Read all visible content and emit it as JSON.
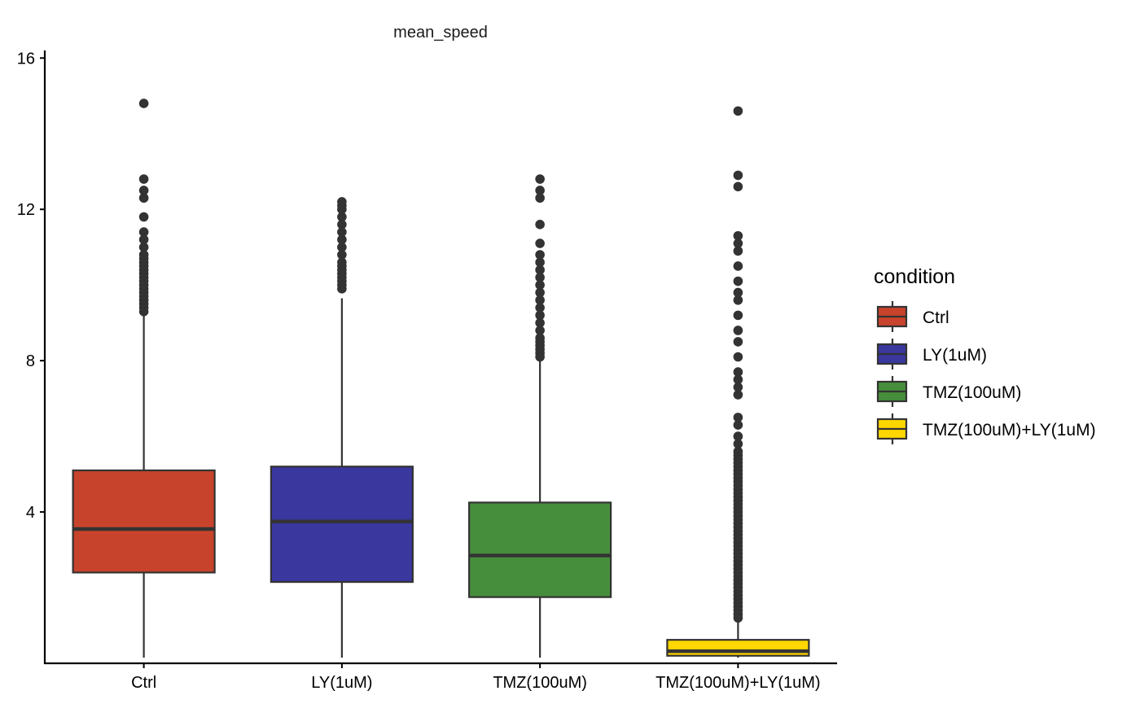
{
  "chart_data": {
    "type": "boxplot",
    "title": "mean_speed",
    "xlabel": "",
    "ylabel": "",
    "ylim": [
      0,
      16.2
    ],
    "yticks": [
      4,
      8,
      12,
      16
    ],
    "grid": false,
    "legend": {
      "title": "condition",
      "position": "right"
    },
    "categories": [
      "Ctrl",
      "LY(1uM)",
      "TMZ(100uM)",
      "TMZ(100uM)+LY(1uM)"
    ],
    "series": [
      {
        "name": "Ctrl",
        "color": "#C8432B",
        "whisker_low": 0.15,
        "q1": 2.4,
        "median": 3.55,
        "q3": 5.1,
        "whisker_high": 9.2,
        "outliers": [
          9.3,
          9.4,
          9.5,
          9.6,
          9.7,
          9.8,
          9.9,
          10.0,
          10.1,
          10.2,
          10.3,
          10.4,
          10.5,
          10.6,
          10.7,
          10.8,
          11.0,
          11.2,
          11.4,
          11.8,
          12.3,
          12.5,
          12.8,
          14.8
        ]
      },
      {
        "name": "LY(1uM)",
        "color": "#3A379E",
        "whisker_low": 0.15,
        "q1": 2.15,
        "median": 3.75,
        "q3": 5.2,
        "whisker_high": 9.65,
        "outliers": [
          9.9,
          10.0,
          10.1,
          10.2,
          10.3,
          10.4,
          10.5,
          10.6,
          10.8,
          11.0,
          11.2,
          11.4,
          11.6,
          11.8,
          12.0,
          12.1,
          12.2
        ]
      },
      {
        "name": "TMZ(100uM)",
        "color": "#468E3C",
        "whisker_low": 0.15,
        "q1": 1.75,
        "median": 2.85,
        "q3": 4.25,
        "whisker_high": 8.05,
        "outliers": [
          8.1,
          8.2,
          8.3,
          8.4,
          8.5,
          8.6,
          8.8,
          9.0,
          9.2,
          9.4,
          9.6,
          9.8,
          10.0,
          10.2,
          10.4,
          10.6,
          10.8,
          11.1,
          11.6,
          12.3,
          12.5,
          12.8
        ]
      },
      {
        "name": "TMZ(100uM)+LY(1uM)",
        "color": "#FFD700",
        "whisker_low": 0.15,
        "q1": 0.2,
        "median": 0.32,
        "q3": 0.62,
        "whisker_high": 1.15,
        "outliers": [
          1.2,
          1.3,
          1.4,
          1.5,
          1.6,
          1.7,
          1.8,
          1.9,
          2.0,
          2.1,
          2.2,
          2.3,
          2.4,
          2.5,
          2.6,
          2.7,
          2.8,
          2.9,
          3.0,
          3.1,
          3.2,
          3.3,
          3.4,
          3.5,
          3.6,
          3.7,
          3.8,
          3.9,
          4.0,
          4.1,
          4.2,
          4.3,
          4.4,
          4.5,
          4.6,
          4.7,
          4.8,
          4.9,
          5.0,
          5.1,
          5.2,
          5.3,
          5.4,
          5.5,
          5.6,
          5.8,
          6.0,
          6.3,
          6.5,
          7.1,
          7.3,
          7.5,
          7.7,
          8.1,
          8.5,
          8.8,
          9.2,
          9.6,
          9.8,
          10.1,
          10.5,
          10.9,
          11.1,
          11.3,
          12.6,
          12.9,
          14.6
        ]
      }
    ]
  }
}
